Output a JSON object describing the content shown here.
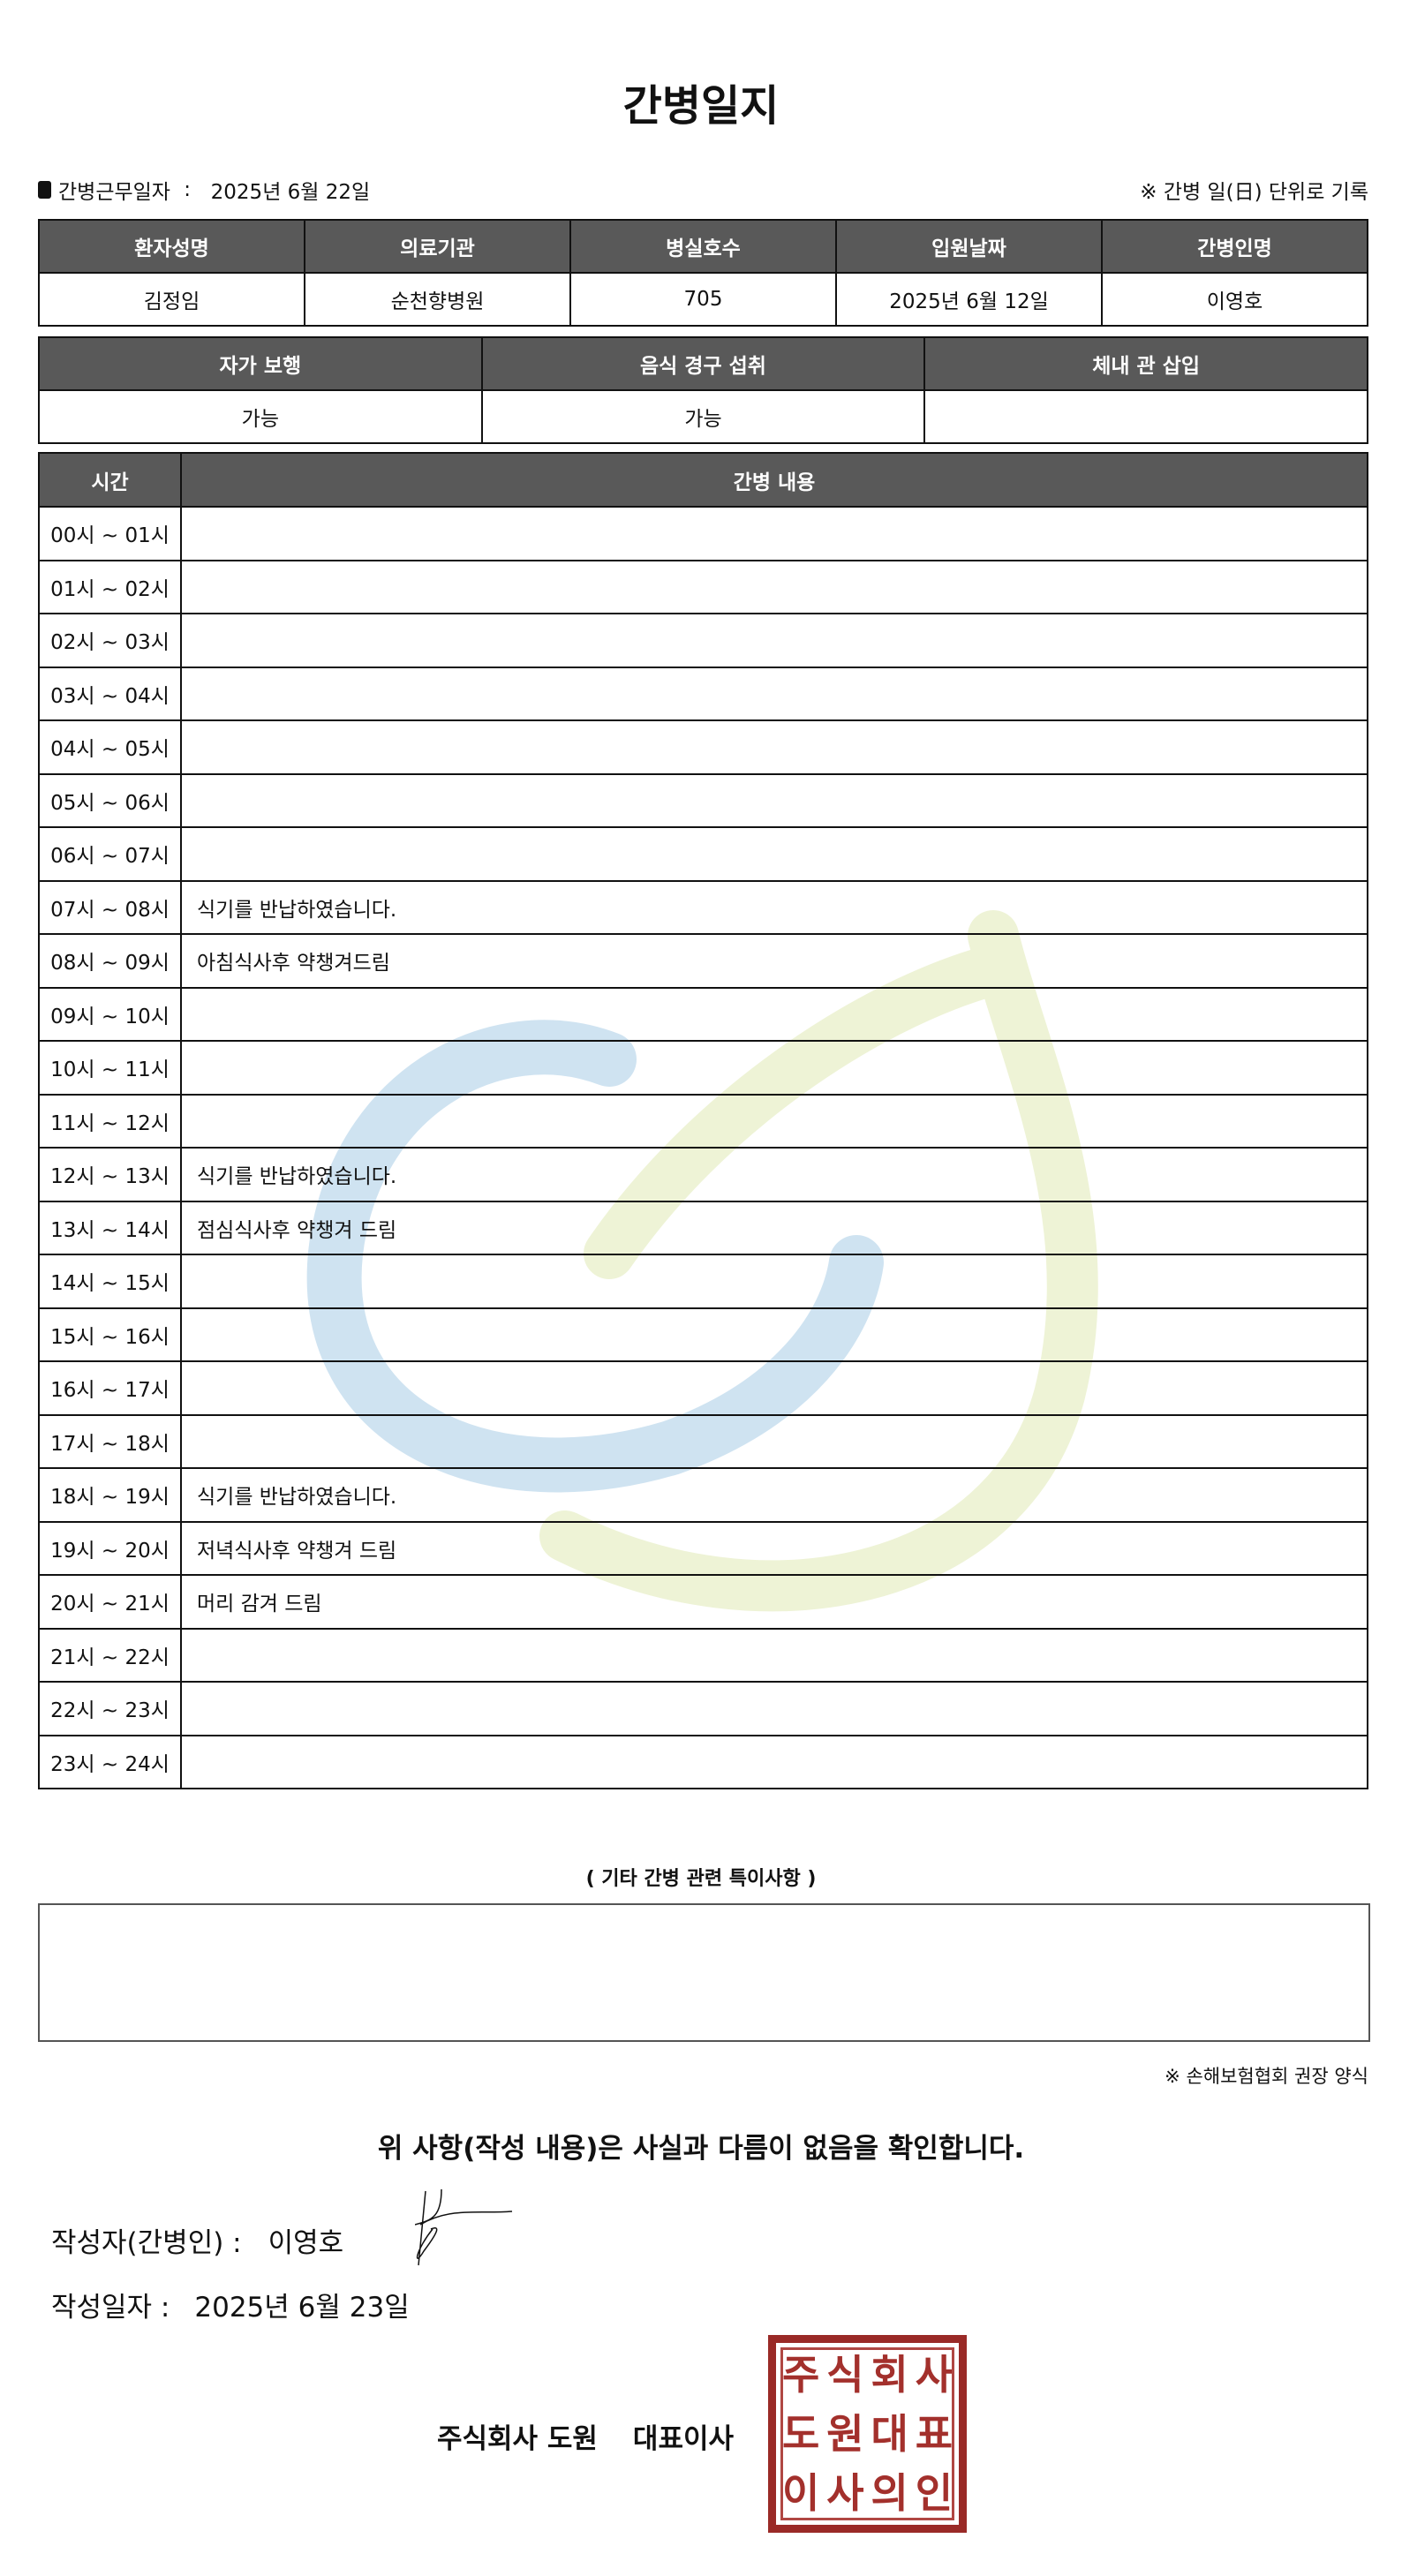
{
  "title": "간병일지",
  "work_date_label": "간병근무일자",
  "work_date": "2025년 6월 22일",
  "unit_note": "※ 간병 일(日) 단위로 기록",
  "info_table": {
    "headers": [
      "환자성명",
      "의료기관",
      "병실호수",
      "입원날짜",
      "간병인명"
    ],
    "values": [
      "김정임",
      "순천향병원",
      "705",
      "2025년 6월 12일",
      "이영호"
    ]
  },
  "status_table": {
    "headers": [
      "자가 보행",
      "음식 경구 섭취",
      "체내 관 삽입"
    ],
    "values": [
      "가능",
      "가능",
      ""
    ]
  },
  "log_table": {
    "headers": [
      "시간",
      "간병 내용"
    ],
    "rows": [
      {
        "time": "00시 ~ 01시",
        "content": ""
      },
      {
        "time": "01시 ~ 02시",
        "content": ""
      },
      {
        "time": "02시 ~ 03시",
        "content": ""
      },
      {
        "time": "03시 ~ 04시",
        "content": ""
      },
      {
        "time": "04시 ~ 05시",
        "content": ""
      },
      {
        "time": "05시 ~ 06시",
        "content": ""
      },
      {
        "time": "06시 ~ 07시",
        "content": ""
      },
      {
        "time": "07시 ~ 08시",
        "content": "식기를 반납하였습니다."
      },
      {
        "time": "08시 ~ 09시",
        "content": "아침식사후 약챙겨드림"
      },
      {
        "time": "09시 ~ 10시",
        "content": ""
      },
      {
        "time": "10시 ~ 11시",
        "content": ""
      },
      {
        "time": "11시 ~ 12시",
        "content": ""
      },
      {
        "time": "12시 ~ 13시",
        "content": "식기를 반납하였습니다."
      },
      {
        "time": "13시 ~ 14시",
        "content": "점심식사후 약챙겨 드림"
      },
      {
        "time": "14시 ~ 15시",
        "content": ""
      },
      {
        "time": "15시 ~ 16시",
        "content": ""
      },
      {
        "time": "16시 ~ 17시",
        "content": ""
      },
      {
        "time": "17시 ~ 18시",
        "content": ""
      },
      {
        "time": "18시 ~ 19시",
        "content": "식기를 반납하였습니다."
      },
      {
        "time": "19시 ~ 20시",
        "content": "저녁식사후 약챙겨 드림"
      },
      {
        "time": "20시 ~ 21시",
        "content": "머리 감겨 드림"
      },
      {
        "time": "21시 ~ 22시",
        "content": ""
      },
      {
        "time": "22시 ~ 23시",
        "content": ""
      },
      {
        "time": "23시 ~ 24시",
        "content": ""
      }
    ]
  },
  "remarks_title": "( 기타 간병 관련 특이사항 )",
  "remarks": "",
  "insurance_note": "※ 손해보험협회 권장 양식",
  "confirm_text": "위 사항(작성 내용)은 사실과 다름이 없음을 확인합니다.",
  "author_label": "작성자(간병인) :",
  "author_name": "이영호",
  "write_date_label": "작성일자 :",
  "write_date": "2025년 6월 23일",
  "company": "주식회사 도원",
  "ceo_label": "대표이사",
  "stamp_text": "주식회사도원대표이사의인",
  "colors": {
    "header_bg": "#595959",
    "stamp": "#9a2a27",
    "watermark_blue": "#c9e0f0",
    "watermark_green": "#eef3d6"
  }
}
